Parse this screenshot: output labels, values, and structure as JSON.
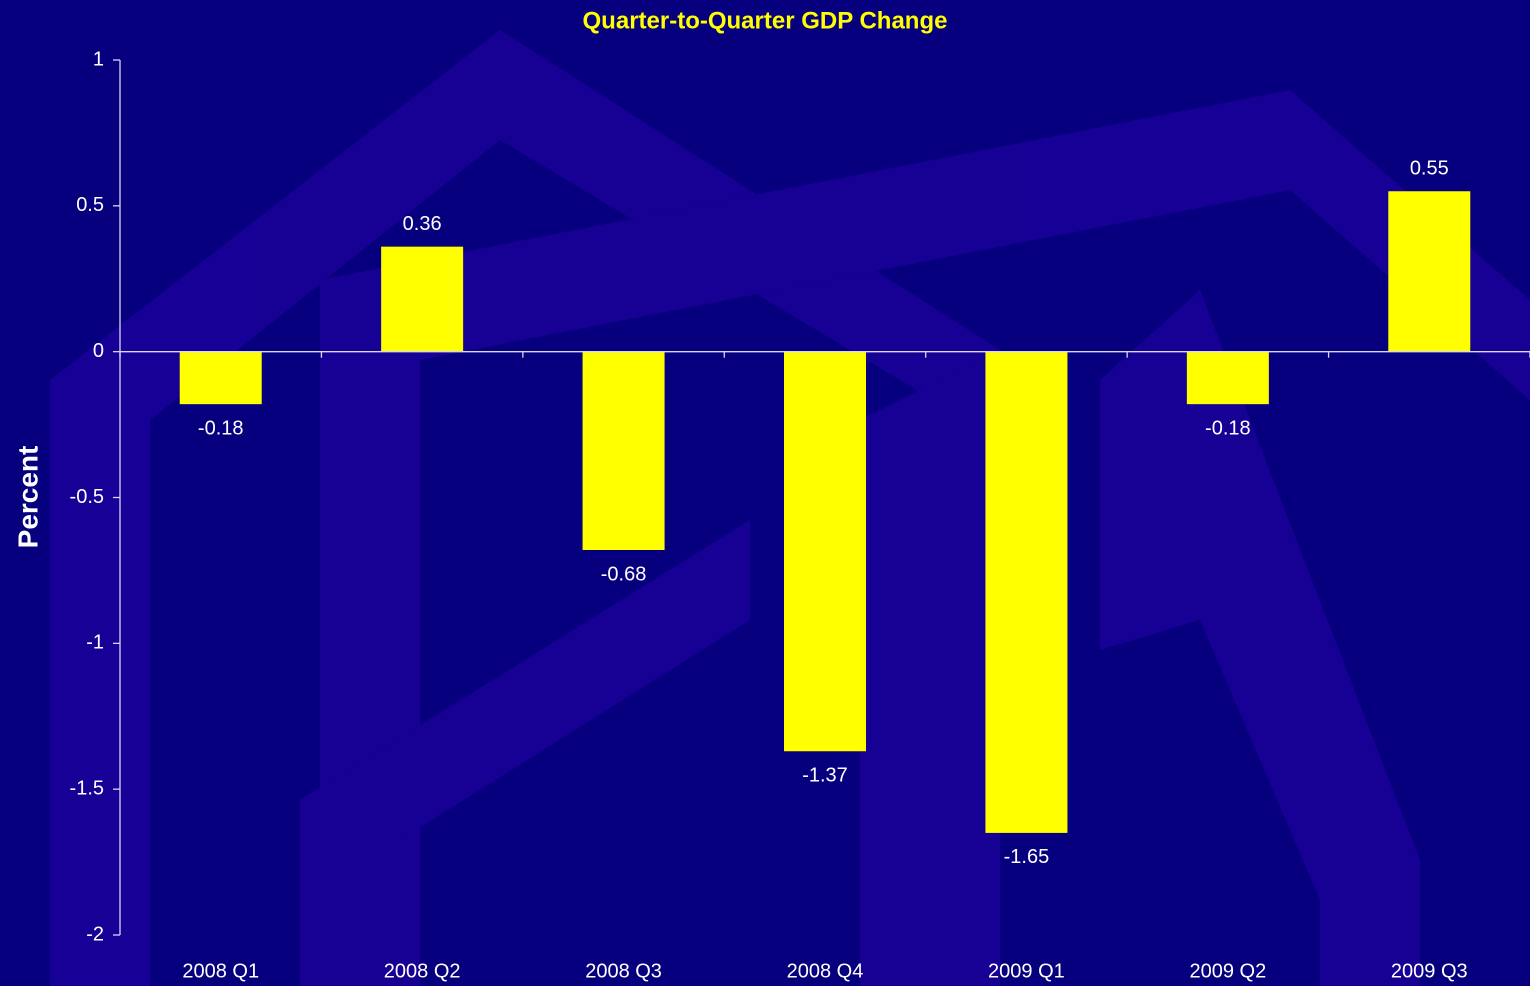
{
  "chart_data": {
    "type": "bar",
    "title": "Quarter-to-Quarter GDP Change",
    "y_label": "Percent",
    "categories": [
      "2008 Q1",
      "2008 Q2",
      "2008 Q3",
      "2008 Q4",
      "2009 Q1",
      "2009 Q2",
      "2009 Q3"
    ],
    "values": [
      -0.18,
      0.36,
      -0.68,
      -1.37,
      -1.65,
      -0.18,
      0.55
    ],
    "color": "#ffff00",
    "ylim": [
      -2,
      1
    ],
    "yticks": [
      -2,
      -1.5,
      -1,
      -0.5,
      0,
      0.5,
      1
    ],
    "grid": false
  }
}
